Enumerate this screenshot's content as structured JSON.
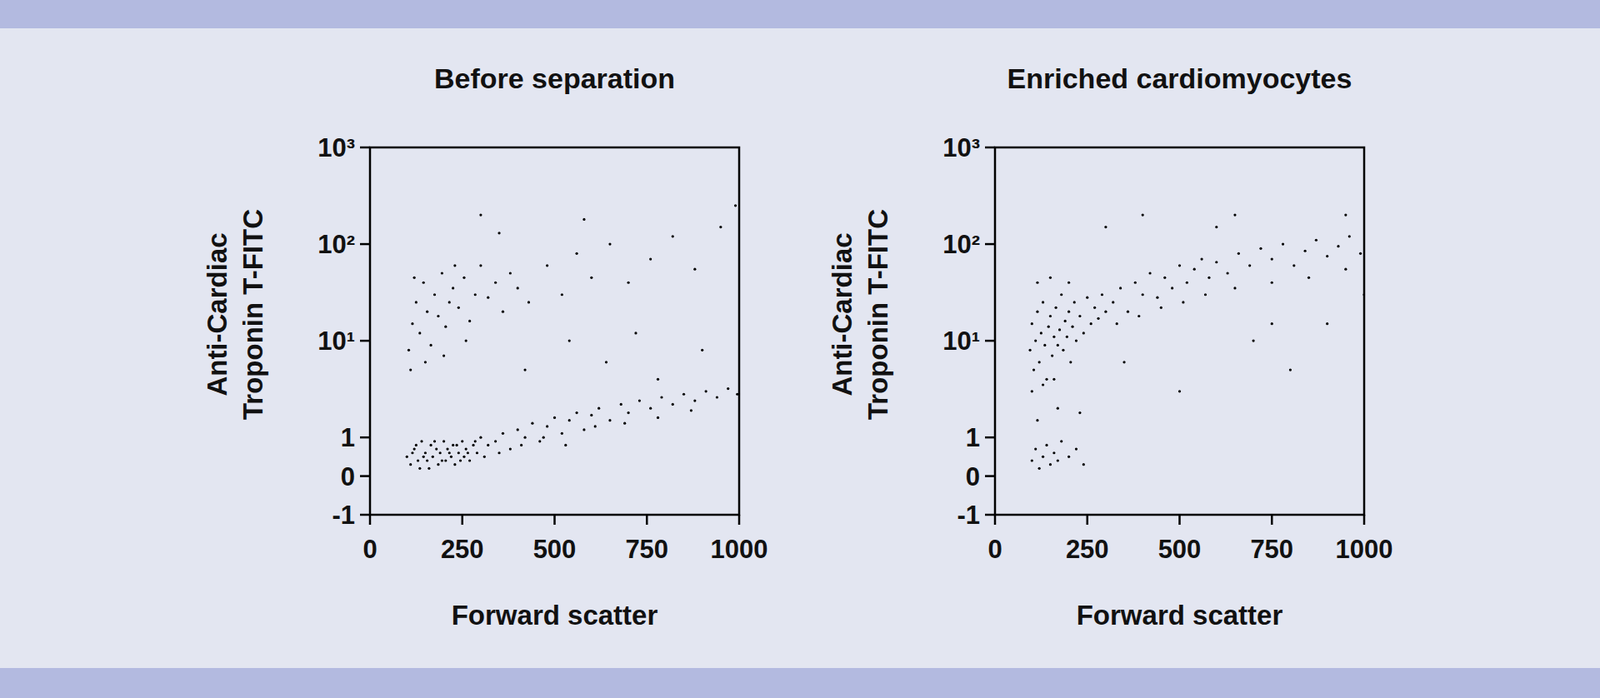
{
  "chart_data": [
    {
      "type": "scatter",
      "title": "Before separation",
      "x_label": "Forward scatter",
      "y_label": [
        "Anti-Cardiac",
        "Troponin T-FITC"
      ],
      "log": "y",
      "color": "#000000",
      "marker": "dot",
      "xlim": [
        0,
        1000
      ],
      "xticks": [
        0,
        250,
        500,
        750,
        1000
      ],
      "ylim": [
        -1,
        1000
      ],
      "yticks": [
        -1,
        0,
        1,
        {
          "value": 10,
          "label": "10¹"
        },
        {
          "value": 100,
          "label": "10²"
        },
        {
          "value": 1000,
          "label": "10³"
        }
      ],
      "x": [
        100,
        110,
        120,
        130,
        140,
        150,
        160,
        165,
        170,
        180,
        185,
        190,
        200,
        205,
        210,
        220,
        225,
        230,
        240,
        250,
        255,
        260,
        270,
        280,
        290,
        300,
        310,
        320,
        115,
        135,
        145,
        175,
        195,
        215,
        235,
        245,
        265,
        285,
        125,
        155,
        340,
        360,
        380,
        400,
        420,
        440,
        460,
        480,
        500,
        520,
        540,
        560,
        580,
        600,
        620,
        650,
        680,
        700,
        730,
        760,
        790,
        820,
        850,
        880,
        910,
        940,
        970,
        995,
        350,
        410,
        470,
        530,
        610,
        690,
        780,
        870,
        105,
        115,
        125,
        135,
        145,
        155,
        165,
        175,
        185,
        195,
        205,
        215,
        225,
        240,
        255,
        270,
        285,
        300,
        320,
        340,
        360,
        380,
        400,
        430,
        110,
        150,
        200,
        260,
        120,
        230,
        480,
        520,
        560,
        600,
        650,
        700,
        760,
        820,
        880,
        950,
        300,
        540,
        640,
        720,
        900,
        990,
        420,
        780,
        350,
        580
      ],
      "values": [
        0.5,
        0.3,
        0.7,
        0.4,
        0.9,
        0.6,
        0.2,
        0.8,
        0.5,
        0.7,
        0.3,
        0.6,
        0.9,
        0.4,
        0.7,
        0.5,
        0.8,
        0.3,
        0.6,
        0.9,
        0.5,
        0.7,
        0.4,
        0.8,
        0.6,
        1.0,
        0.5,
        0.8,
        0.6,
        0.2,
        0.5,
        0.9,
        0.4,
        0.6,
        0.8,
        0.4,
        0.6,
        0.9,
        0.8,
        0.4,
        0.9,
        1.1,
        0.7,
        1.2,
        1.0,
        1.4,
        0.9,
        1.3,
        1.6,
        1.1,
        1.5,
        1.8,
        1.2,
        1.7,
        2.0,
        1.5,
        2.2,
        1.8,
        2.4,
        2.0,
        2.6,
        2.2,
        2.8,
        2.4,
        3.0,
        2.6,
        3.2,
        2.8,
        0.6,
        0.8,
        1.0,
        0.8,
        1.3,
        1.4,
        1.6,
        1.9,
        8,
        15,
        25,
        12,
        40,
        20,
        9,
        30,
        18,
        50,
        14,
        25,
        35,
        22,
        45,
        16,
        30,
        60,
        28,
        40,
        20,
        50,
        35,
        25,
        5,
        6,
        7,
        10,
        45,
        60,
        60,
        30,
        80,
        45,
        100,
        40,
        70,
        120,
        55,
        150,
        200,
        10,
        6,
        12,
        8,
        250,
        5,
        4,
        130,
        180
      ]
    },
    {
      "type": "scatter",
      "title": "Enriched cardiomyocytes",
      "x_label": "Forward scatter",
      "y_label": [
        "Anti-Cardiac",
        "Troponin T-FITC"
      ],
      "log": "y",
      "color": "#000000",
      "marker": "dot",
      "xlim": [
        0,
        1000
      ],
      "xticks": [
        0,
        250,
        500,
        750,
        1000
      ],
      "ylim": [
        -1,
        1000
      ],
      "yticks": [
        -1,
        0,
        1,
        {
          "value": 10,
          "label": "10¹"
        },
        {
          "value": 100,
          "label": "10²"
        },
        {
          "value": 1000,
          "label": "10³"
        }
      ],
      "x": [
        95,
        100,
        105,
        110,
        115,
        120,
        125,
        130,
        135,
        140,
        145,
        150,
        155,
        160,
        165,
        170,
        175,
        180,
        185,
        190,
        195,
        200,
        205,
        210,
        215,
        220,
        230,
        240,
        250,
        260,
        270,
        280,
        290,
        300,
        100,
        130,
        160,
        115,
        150,
        200,
        320,
        340,
        360,
        380,
        400,
        420,
        440,
        460,
        480,
        500,
        520,
        540,
        560,
        580,
        600,
        330,
        390,
        450,
        510,
        570,
        630,
        660,
        690,
        720,
        750,
        780,
        810,
        840,
        870,
        900,
        930,
        960,
        990,
        650,
        750,
        850,
        950,
        100,
        110,
        120,
        130,
        140,
        150,
        160,
        170,
        180,
        200,
        220,
        240,
        115,
        170,
        230,
        400,
        300,
        600,
        700,
        800,
        500,
        900,
        350,
        650,
        950,
        1000,
        750
      ],
      "values": [
        8,
        15,
        5,
        10,
        20,
        6,
        12,
        25,
        9,
        4,
        14,
        18,
        7,
        11,
        22,
        9,
        13,
        30,
        8,
        16,
        11,
        20,
        6,
        14,
        25,
        10,
        18,
        12,
        28,
        15,
        22,
        17,
        30,
        20,
        3,
        3.5,
        4,
        40,
        45,
        40,
        25,
        35,
        20,
        40,
        30,
        50,
        28,
        45,
        35,
        60,
        40,
        55,
        70,
        45,
        65,
        15,
        18,
        22,
        25,
        30,
        50,
        80,
        60,
        90,
        70,
        100,
        60,
        85,
        110,
        75,
        95,
        120,
        80,
        35,
        40,
        45,
        55,
        0.4,
        0.7,
        0.2,
        0.5,
        0.8,
        0.3,
        0.6,
        0.4,
        0.9,
        0.5,
        0.7,
        0.3,
        1.5,
        2,
        1.8,
        200,
        150,
        150,
        10,
        5,
        3,
        15,
        6,
        200,
        200,
        30,
        15
      ]
    }
  ]
}
